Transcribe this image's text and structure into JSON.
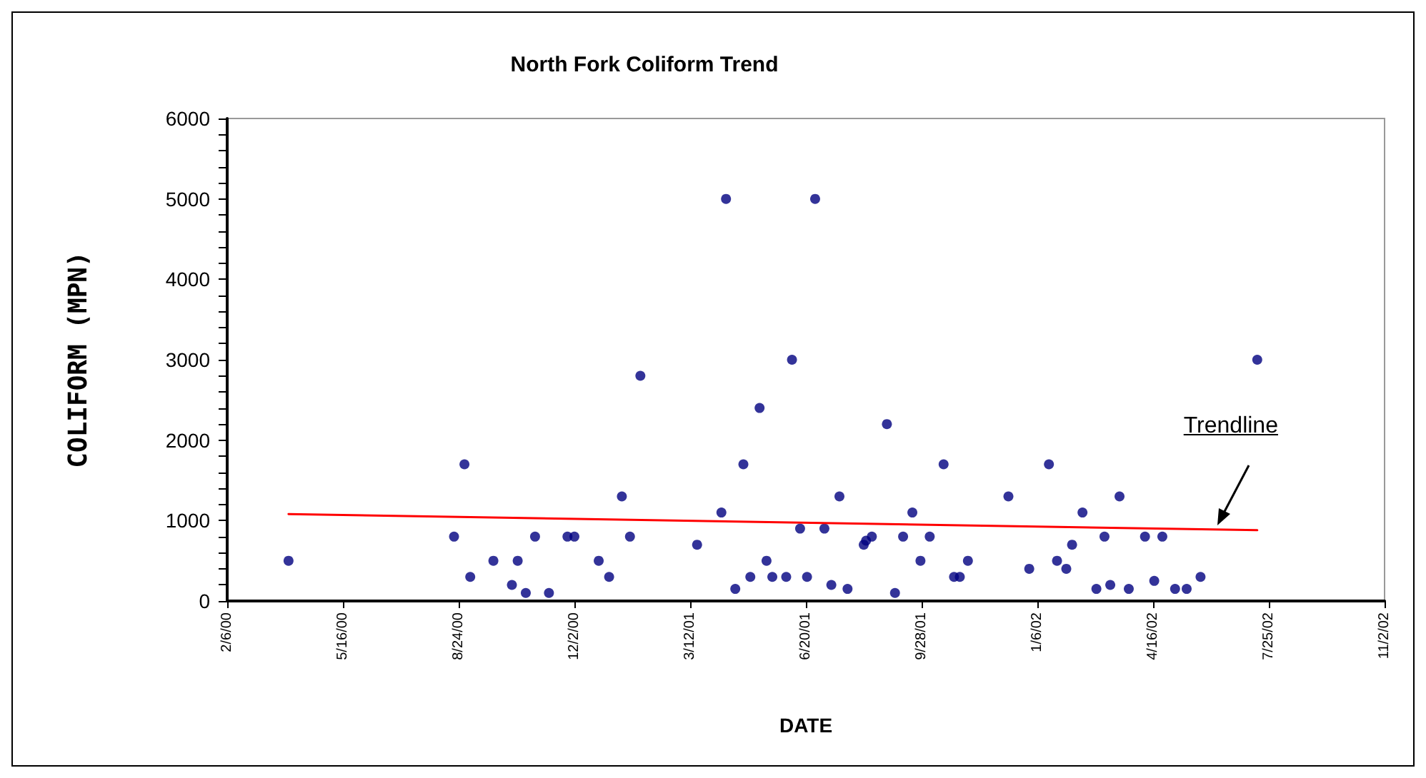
{
  "chart_data": {
    "type": "scatter",
    "title": "North Fork Coliform Trend",
    "xlabel": "DATE",
    "ylabel": "COLIFORM (MPN)",
    "xlim": [
      "2000-02-06",
      "2002-11-02"
    ],
    "xticks": [
      {
        "value": "2000-02-06",
        "label": "2/6/00"
      },
      {
        "value": "2000-05-16",
        "label": "5/16/00"
      },
      {
        "value": "2000-08-24",
        "label": "8/24/00"
      },
      {
        "value": "2000-12-02",
        "label": "12/2/00"
      },
      {
        "value": "2001-03-12",
        "label": "3/12/01"
      },
      {
        "value": "2001-06-20",
        "label": "6/20/01"
      },
      {
        "value": "2001-09-28",
        "label": "9/28/01"
      },
      {
        "value": "2002-01-06",
        "label": "1/6/02"
      },
      {
        "value": "2002-04-16",
        "label": "4/16/02"
      },
      {
        "value": "2002-07-25",
        "label": "7/25/02"
      },
      {
        "value": "2002-11-02",
        "label": "11/2/02"
      }
    ],
    "ylim": [
      0,
      6000
    ],
    "yticks": [
      0,
      1000,
      2000,
      3000,
      4000,
      5000,
      6000
    ],
    "grid": false,
    "marker": "circle",
    "series": [
      {
        "color": "#000080",
        "x": [
          "2000-03-30",
          "2000-08-20",
          "2000-08-29",
          "2000-09-03",
          "2000-09-23",
          "2000-10-09",
          "2000-10-14",
          "2000-10-21",
          "2000-10-29",
          "2000-11-10",
          "2000-11-26",
          "2000-12-02",
          "2000-12-23",
          "2001-01-01",
          "2001-01-12",
          "2001-01-19",
          "2001-01-28",
          "2001-03-18",
          "2001-04-08",
          "2001-04-12",
          "2001-04-20",
          "2001-04-27",
          "2001-05-03",
          "2001-05-11",
          "2001-05-17",
          "2001-05-22",
          "2001-06-03",
          "2001-06-08",
          "2001-06-15",
          "2001-06-21",
          "2001-06-28",
          "2001-07-06",
          "2001-07-12",
          "2001-07-19",
          "2001-07-26",
          "2001-08-09",
          "2001-08-11",
          "2001-08-16",
          "2001-08-29",
          "2001-09-05",
          "2001-09-12",
          "2001-09-20",
          "2001-09-27",
          "2001-10-05",
          "2001-10-17",
          "2001-10-26",
          "2001-10-31",
          "2001-11-07",
          "2001-12-12",
          "2001-12-30",
          "2002-01-16",
          "2002-01-23",
          "2002-01-31",
          "2002-02-05",
          "2002-02-14",
          "2002-02-26",
          "2002-03-05",
          "2002-03-10",
          "2002-03-18",
          "2002-03-26",
          "2002-04-09",
          "2002-04-17",
          "2002-04-24",
          "2002-05-05",
          "2002-05-15",
          "2002-05-27",
          "2002-07-15"
        ],
        "values": [
          500,
          800,
          1700,
          300,
          500,
          200,
          500,
          100,
          800,
          100,
          800,
          800,
          500,
          300,
          1300,
          800,
          2800,
          700,
          1100,
          5000,
          150,
          1700,
          300,
          2400,
          500,
          300,
          300,
          3000,
          900,
          300,
          5000,
          900,
          200,
          1300,
          150,
          700,
          750,
          800,
          2200,
          100,
          800,
          1100,
          500,
          800,
          1700,
          300,
          300,
          500,
          1300,
          400,
          1700,
          500,
          400,
          700,
          1100,
          150,
          800,
          200,
          1300,
          150,
          800,
          250,
          800,
          150,
          150,
          300,
          3000
        ]
      },
      {
        "type": "line",
        "color": "#ff0000",
        "x": [
          "2000-03-30",
          "2002-07-15"
        ],
        "values": [
          1080,
          880
        ],
        "marker": "none",
        "line_style": "solid"
      }
    ],
    "annotations": [
      {
        "text": "Trendline",
        "x": "2002-06-11",
        "y": 900
      }
    ]
  }
}
